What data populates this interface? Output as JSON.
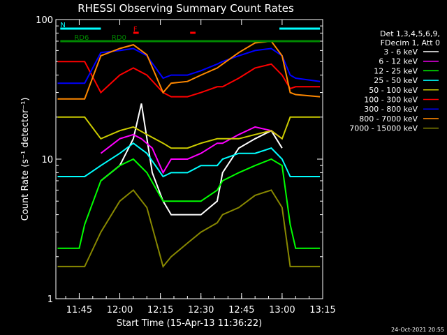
{
  "chart_data": {
    "type": "line",
    "title": "RHESSI Observing Summary Count Rates",
    "xlabel": "Start Time (15-Apr-13 11:36:22)",
    "ylabel": "Count Rate (s⁻¹ detector⁻¹)",
    "y_scale": "log",
    "ylim": [
      1,
      100
    ],
    "xlim": [
      "11:36:22",
      "13:15:00"
    ],
    "x_ticks": [
      "11:45",
      "12:00",
      "12:15",
      "12:30",
      "12:45",
      "13:00",
      "13:15"
    ],
    "y_ticks": [
      "1",
      "10",
      "100"
    ],
    "legend_header": [
      "Det 1,3,4,5,6,9,",
      "FDecim 1, Att 0"
    ],
    "legend_position": "right",
    "footer_date": "24-Oct-2021 20:55",
    "flags": {
      "N": {
        "label": "N",
        "color": "#00ffff",
        "segments": [
          [
            "11:38",
            "11:53"
          ],
          [
            "12:59",
            "13:14"
          ]
        ]
      },
      "F": {
        "label": "F",
        "color": "#ff0000",
        "segments": [
          [
            "12:05",
            "12:07"
          ],
          [
            "12:26",
            "12:28"
          ]
        ]
      },
      "RD0": {
        "label": "RD0",
        "color": "#008800",
        "segments": [
          [
            "11:57",
            "13:14"
          ]
        ]
      },
      "RD6": {
        "label": "RD6",
        "color": "#008800",
        "segments": [
          [
            "11:38",
            "11:57"
          ]
        ]
      }
    },
    "series": [
      {
        "name": "3 - 6 keV",
        "color": "#ffffff",
        "x": [
          "11:37",
          "11:44",
          "11:45",
          "11:47",
          "11:52",
          "11:53",
          "12:00",
          "12:05",
          "12:08",
          "12:12",
          "12:16",
          "12:19",
          "12:20",
          "12:25",
          "12:30",
          "12:36",
          "12:38",
          "12:44",
          "12:50",
          "12:56",
          "13:00",
          "13:14"
        ],
        "values": [
          null,
          null,
          null,
          null,
          null,
          7,
          9,
          14,
          25,
          8,
          5,
          4,
          4,
          4,
          4,
          5,
          8,
          12,
          14,
          16,
          12,
          null
        ]
      },
      {
        "name": "6 - 12 keV",
        "color": "#ff00ff",
        "x": [
          "11:37",
          "11:44",
          "11:47",
          "11:53",
          "12:00",
          "12:05",
          "12:08",
          "12:12",
          "12:16",
          "12:19",
          "12:25",
          "12:30",
          "12:36",
          "12:38",
          "12:44",
          "12:50",
          "12:56",
          "13:00",
          "13:14"
        ],
        "values": [
          null,
          null,
          null,
          11,
          14,
          15,
          14,
          12,
          8,
          10,
          10,
          11,
          13,
          13,
          15,
          17,
          16,
          14,
          null
        ]
      },
      {
        "name": "12 - 25 keV",
        "color": "#00ff00",
        "x": [
          "11:37",
          "11:44",
          "11:45",
          "11:47",
          "11:53",
          "12:00",
          "12:05",
          "12:10",
          "12:16",
          "12:19",
          "12:25",
          "12:30",
          "12:36",
          "12:38",
          "12:44",
          "12:50",
          "12:56",
          "13:00",
          "13:03",
          "13:05",
          "13:14"
        ],
        "values": [
          2.3,
          2.3,
          2.3,
          3.4,
          7,
          9,
          10,
          8,
          5,
          5,
          5,
          5,
          6,
          7,
          8,
          9,
          10,
          9,
          3.4,
          2.3,
          2.3
        ]
      },
      {
        "name": "25 - 50 keV",
        "color": "#00ffff",
        "x": [
          "11:37",
          "11:44",
          "11:47",
          "11:53",
          "12:00",
          "12:05",
          "12:10",
          "12:16",
          "12:19",
          "12:25",
          "12:30",
          "12:36",
          "12:38",
          "12:44",
          "12:50",
          "12:56",
          "13:00",
          "13:03",
          "13:05",
          "13:14"
        ],
        "values": [
          7.5,
          7.5,
          7.5,
          9,
          11,
          13,
          11,
          7.5,
          8,
          8,
          9,
          9,
          10,
          11,
          11,
          12,
          10,
          7.5,
          7.5,
          7.5
        ]
      },
      {
        "name": "50 - 100 keV",
        "color": "#cccc00",
        "x": [
          "11:37",
          "11:44",
          "11:47",
          "11:53",
          "12:00",
          "12:05",
          "12:10",
          "12:16",
          "12:19",
          "12:25",
          "12:30",
          "12:36",
          "12:38",
          "12:44",
          "12:50",
          "12:56",
          "13:00",
          "13:03",
          "13:05",
          "13:14"
        ],
        "values": [
          20,
          20,
          20,
          14,
          16,
          17,
          15,
          13,
          12,
          12,
          13,
          14,
          14,
          14,
          15,
          16,
          14,
          20,
          20,
          20
        ]
      },
      {
        "name": "100 - 300 keV",
        "color": "#ff0000",
        "x": [
          "11:37",
          "11:44",
          "11:47",
          "11:53",
          "12:00",
          "12:05",
          "12:10",
          "12:16",
          "12:19",
          "12:25",
          "12:30",
          "12:36",
          "12:38",
          "12:44",
          "12:50",
          "12:56",
          "13:00",
          "13:03",
          "13:05",
          "13:14"
        ],
        "values": [
          50,
          50,
          50,
          30,
          40,
          45,
          40,
          30,
          28,
          28,
          30,
          33,
          33,
          38,
          45,
          48,
          40,
          32,
          33,
          33
        ]
      },
      {
        "name": "300 - 800 keV",
        "color": "#0000ff",
        "x": [
          "11:37",
          "11:44",
          "11:47",
          "11:53",
          "12:00",
          "12:05",
          "12:10",
          "12:16",
          "12:19",
          "12:25",
          "12:30",
          "12:36",
          "12:38",
          "12:44",
          "12:50",
          "12:56",
          "13:00",
          "13:03",
          "13:05",
          "13:14"
        ],
        "values": [
          35,
          35,
          35,
          58,
          60,
          62,
          55,
          38,
          40,
          40,
          43,
          48,
          50,
          55,
          60,
          62,
          55,
          40,
          38,
          36
        ]
      },
      {
        "name": "800 - 7000 keV",
        "color": "#ff8800",
        "x": [
          "11:37",
          "11:44",
          "11:47",
          "11:53",
          "12:00",
          "12:05",
          "12:10",
          "12:16",
          "12:19",
          "12:25",
          "12:30",
          "12:36",
          "12:38",
          "12:44",
          "12:50",
          "12:56",
          "13:00",
          "13:03",
          "13:05",
          "13:14"
        ],
        "values": [
          27,
          27,
          27,
          55,
          62,
          66,
          56,
          30,
          35,
          36,
          40,
          45,
          48,
          58,
          68,
          70,
          55,
          30,
          29,
          28
        ]
      },
      {
        "name": "7000 - 15000 keV",
        "color": "#888800",
        "x": [
          "11:37",
          "11:44",
          "11:47",
          "11:53",
          "12:00",
          "12:05",
          "12:10",
          "12:16",
          "12:19",
          "12:25",
          "12:30",
          "12:36",
          "12:38",
          "12:44",
          "12:50",
          "12:56",
          "13:00",
          "13:03",
          "13:05",
          "13:14"
        ],
        "values": [
          1.7,
          1.7,
          1.7,
          3,
          5,
          6,
          4.5,
          1.7,
          2,
          2.5,
          3,
          3.5,
          4,
          4.5,
          5.5,
          6,
          4.5,
          1.7,
          1.7,
          1.7
        ]
      }
    ]
  }
}
